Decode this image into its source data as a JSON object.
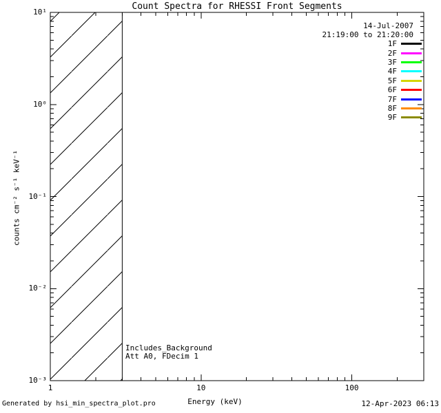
{
  "chart_data": {
    "type": "line",
    "title": "Count Spectra for RHESSI Front Segments",
    "xlabel": "Energy (keV)",
    "ylabel": "counts cm⁻² s⁻¹ keV⁻¹",
    "x_axis": {
      "scale": "log",
      "min": 1,
      "max": 300,
      "tick_values": [
        1,
        10,
        100
      ],
      "tick_labels": [
        "1",
        "10",
        "100"
      ]
    },
    "y_axis": {
      "scale": "log",
      "min": 0.001,
      "max": 10,
      "tick_values": [
        10,
        1,
        0.1,
        0.01,
        0.001
      ],
      "tick_labels": [
        "10¹",
        "10⁰",
        "10⁻¹",
        "10⁻²",
        "10⁻³"
      ]
    },
    "grid": false,
    "header": {
      "date": "14-Jul-2007",
      "time_range": "21:19:00 to 21:20:00"
    },
    "legend": {
      "position": "top-right-inside",
      "entries": [
        {
          "label": "1F",
          "color": "#000000"
        },
        {
          "label": "2F",
          "color": "#FF00FF"
        },
        {
          "label": "3F",
          "color": "#00FF00"
        },
        {
          "label": "4F",
          "color": "#00FFFF"
        },
        {
          "label": "5F",
          "color": "#D6D600"
        },
        {
          "label": "6F",
          "color": "#FF0000"
        },
        {
          "label": "7F",
          "color": "#0000FF"
        },
        {
          "label": "8F",
          "color": "#FF8C00"
        },
        {
          "label": "9F",
          "color": "#8B8B00"
        }
      ]
    },
    "annotations": [
      "Includes_Background",
      "Att A0, FDecim 1"
    ],
    "hatched_region": {
      "x_min": 1,
      "x_max": 3,
      "style": "diagonal-hatch-45deg"
    },
    "series": []
  },
  "footer": {
    "left": "Generated by hsi_min_spectra_plot.pro",
    "right": "12-Apr-2023 06:13"
  }
}
